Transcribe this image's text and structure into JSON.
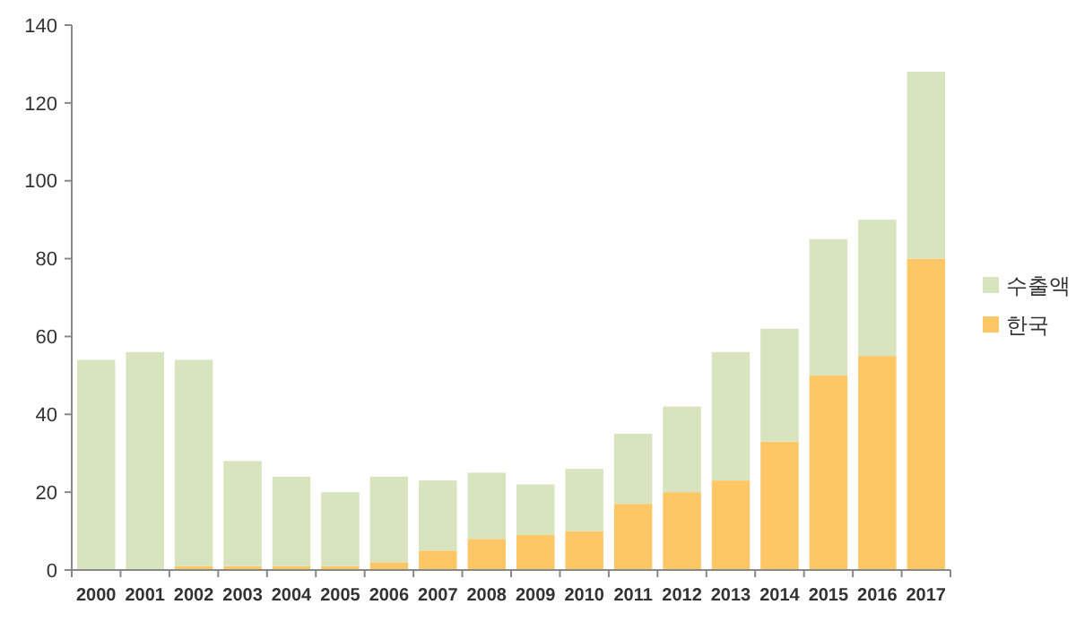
{
  "chart_data": {
    "type": "bar",
    "stacked": true,
    "categories": [
      "2000",
      "2001",
      "2002",
      "2003",
      "2004",
      "2005",
      "2006",
      "2007",
      "2008",
      "2009",
      "2010",
      "2011",
      "2012",
      "2013",
      "2014",
      "2015",
      "2016",
      "2017"
    ],
    "series": [
      {
        "name": "한국",
        "color": "#fdc765",
        "values": [
          0,
          0,
          1,
          1,
          1,
          1,
          2,
          5,
          8,
          9,
          10,
          17,
          20,
          23,
          33,
          50,
          55,
          80
        ]
      },
      {
        "name": "수출액",
        "color": "#d7e4bd",
        "values": [
          54,
          56,
          53,
          27,
          23,
          19,
          22,
          18,
          17,
          13,
          16,
          18,
          22,
          33,
          29,
          35,
          35,
          48
        ]
      }
    ],
    "ylim": [
      0,
      140
    ],
    "yticks": [
      0,
      20,
      40,
      60,
      80,
      100,
      120,
      140
    ],
    "grid": false,
    "legend": "right"
  }
}
